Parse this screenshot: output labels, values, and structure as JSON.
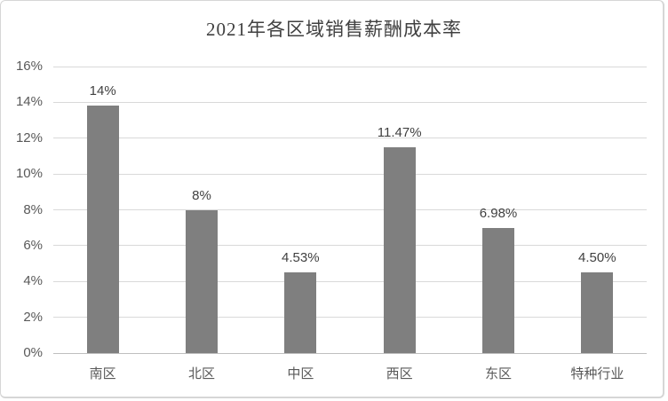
{
  "title": "2021年各区域销售薪酬成本率",
  "colors": {
    "bar_fill": "#7f7f7f",
    "gridline": "#d9d9d9",
    "axis_line": "#bfbfbf",
    "axis_text": "#595959",
    "data_label_text": "#404040",
    "title_text": "#404040",
    "frame_border": "#d6d6d6"
  },
  "chart_data": {
    "type": "bar",
    "title": "2021年各区域销售薪酬成本率",
    "categories": [
      "南区",
      "北区",
      "中区",
      "西区",
      "东区",
      "特种行业"
    ],
    "values": [
      13.8,
      8.0,
      4.53,
      11.47,
      6.98,
      4.5
    ],
    "data_labels": [
      "14%",
      "8%",
      "4.53%",
      "11.47%",
      "6.98%",
      "4.50%"
    ],
    "xlabel": "",
    "ylabel": "",
    "ylim": [
      0,
      16
    ],
    "ytick_step": 2,
    "ytick_labels": [
      "0%",
      "2%",
      "4%",
      "6%",
      "8%",
      "10%",
      "12%",
      "14%",
      "16%"
    ],
    "grid": true,
    "legend": false
  }
}
